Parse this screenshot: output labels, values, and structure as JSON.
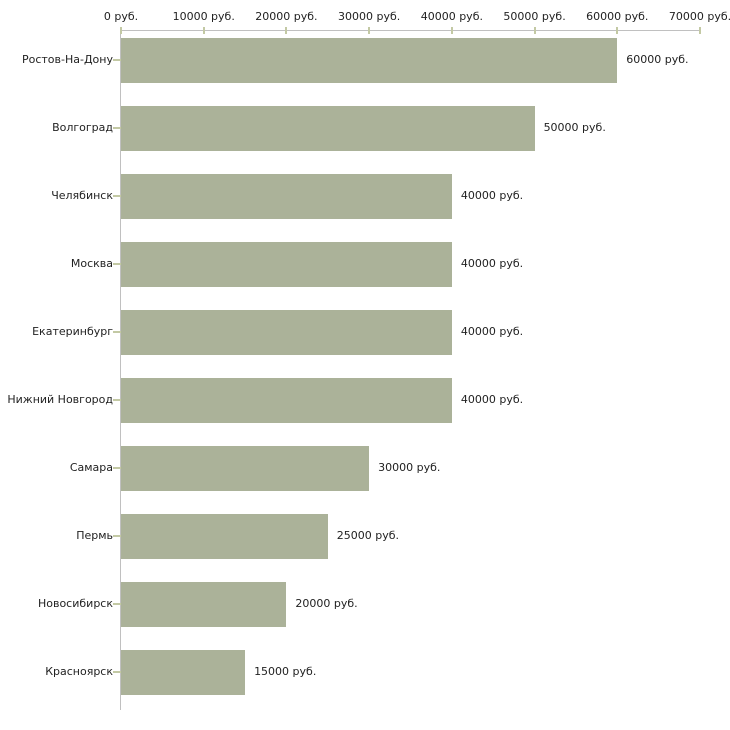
{
  "chart_data": {
    "type": "bar",
    "orientation": "horizontal",
    "title": "",
    "xlabel": "",
    "ylabel": "",
    "unit": "руб.",
    "categories": [
      "Ростов-На-Дону",
      "Волгоград",
      "Челябинск",
      "Москва",
      "Екатеринбург",
      "Нижний Новгород",
      "Самара",
      "Пермь",
      "Новосибирск",
      "Красноярск"
    ],
    "values": [
      60000,
      50000,
      40000,
      40000,
      40000,
      40000,
      30000,
      25000,
      20000,
      15000
    ],
    "bar_labels": [
      "60000 руб.",
      "50000 руб.",
      "40000 руб.",
      "40000 руб.",
      "40000 руб.",
      "40000 руб.",
      "30000 руб.",
      "25000 руб.",
      "20000 руб.",
      "15000 руб."
    ],
    "x_tick_values": [
      0,
      10000,
      20000,
      30000,
      40000,
      50000,
      60000,
      70000
    ],
    "x_tick_labels": [
      "0 руб.",
      "10000 руб.",
      "20000 руб.",
      "30000 руб.",
      "40000 руб.",
      "50000 руб.",
      "60000 руб.",
      "70000 руб."
    ],
    "xlim": [
      0,
      70000
    ],
    "grid": false,
    "legend": false,
    "colors": {
      "bar": "#abb299",
      "axis_line": "#c0c0c0",
      "tick": "#c3c9a4",
      "text": "#222222",
      "background": "#ffffff"
    }
  }
}
